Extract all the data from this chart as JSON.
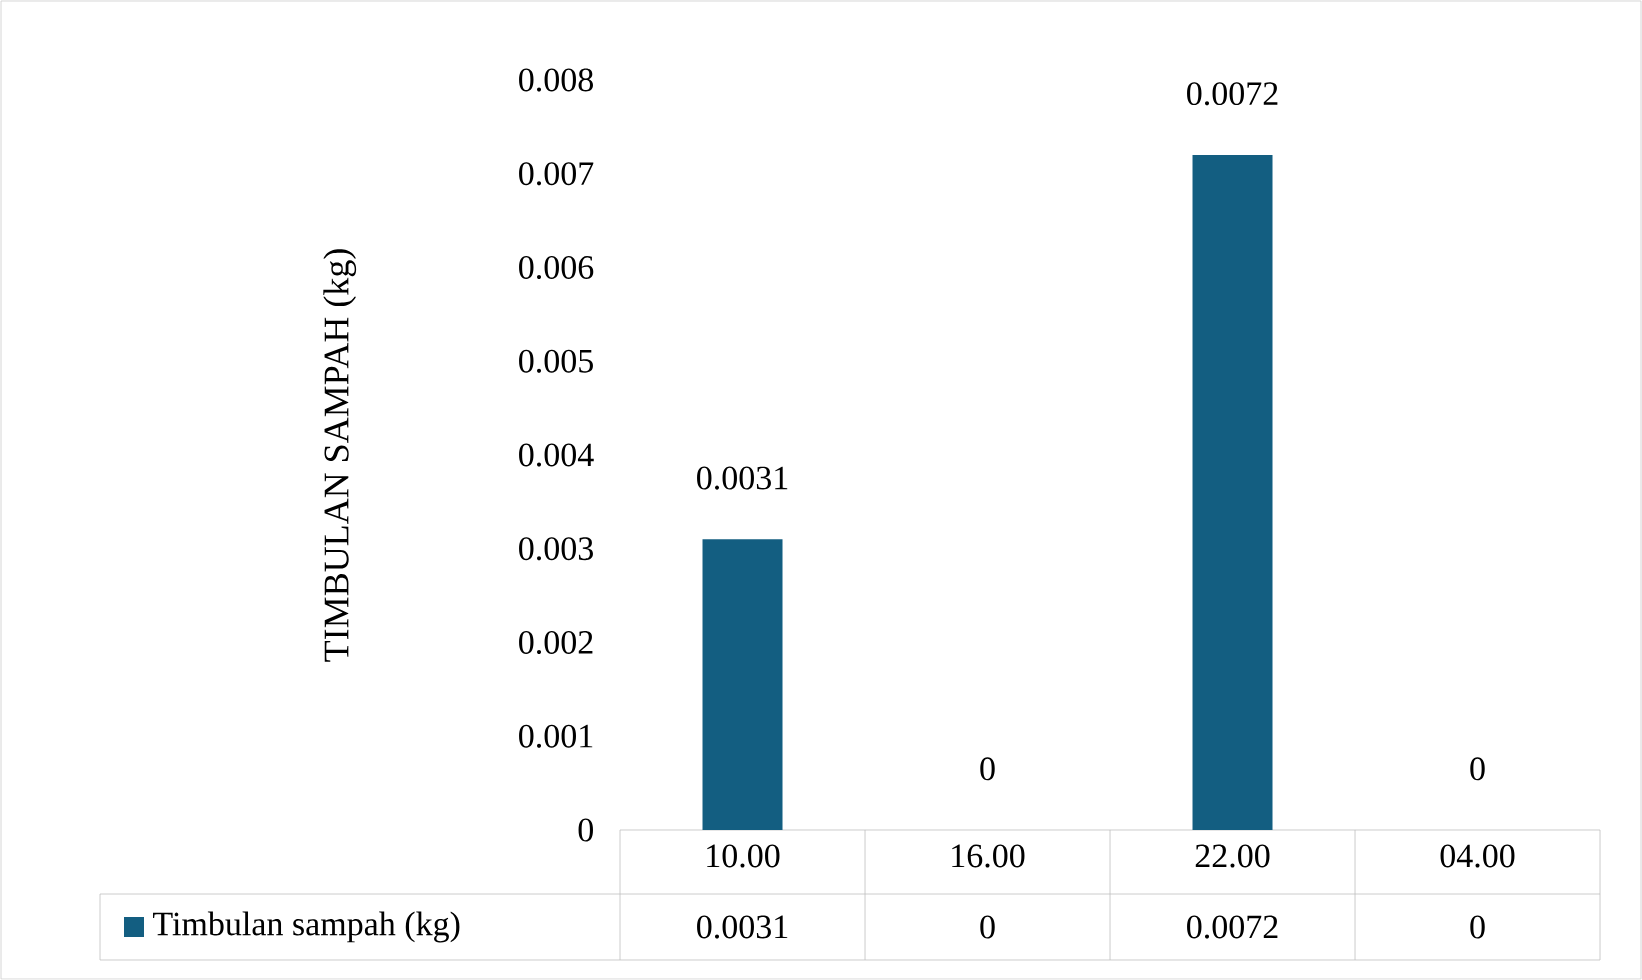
{
  "chart_data": {
    "type": "bar",
    "ylabel": "TIMBULAN SAMPAH (kg)",
    "categories": [
      "10.00",
      "16.00",
      "22.00",
      "04.00"
    ],
    "series": [
      {
        "name": "Timbulan sampah (kg)",
        "color": "#135e81",
        "values": [
          0.0031,
          0,
          0.0072,
          0
        ],
        "value_labels": [
          "0.0031",
          "0",
          "0.0072",
          "0"
        ]
      }
    ],
    "ylim": [
      0,
      0.008
    ],
    "yticks": [
      0,
      0.001,
      0.002,
      0.003,
      0.004,
      0.005,
      0.006,
      0.007,
      0.008
    ],
    "grid": false,
    "legend": "bottom"
  }
}
